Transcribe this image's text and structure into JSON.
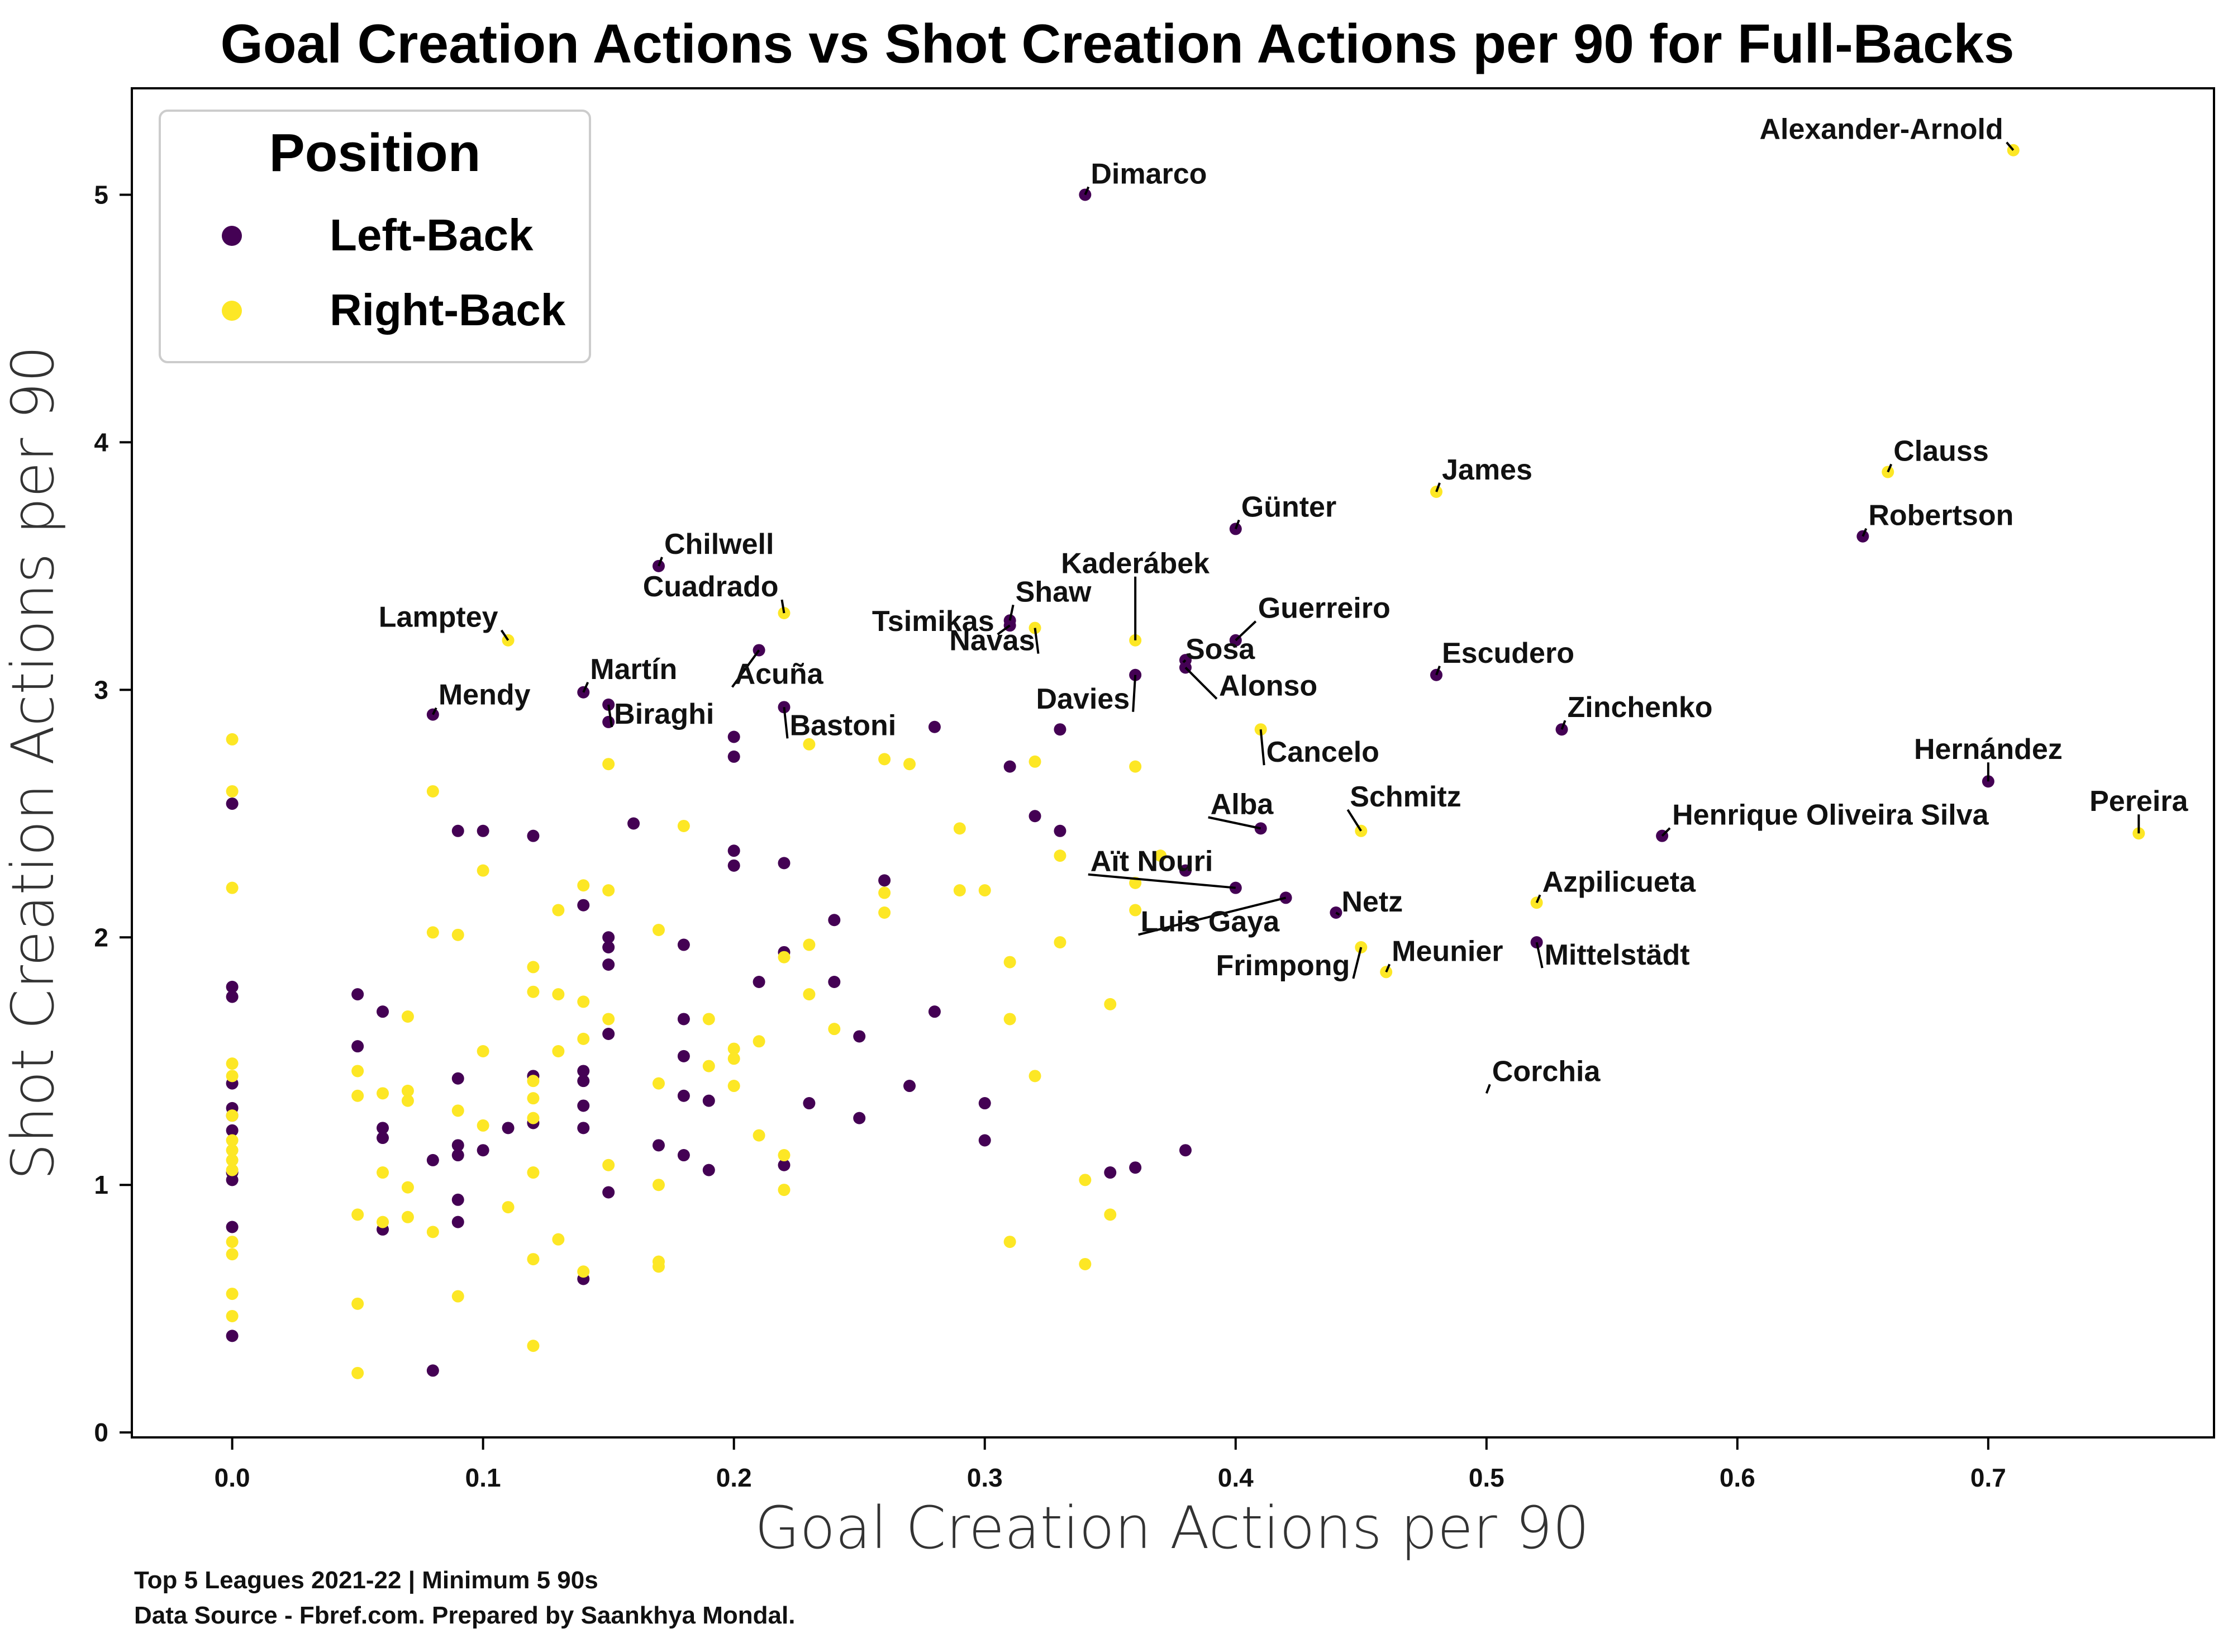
{
  "chart_data": {
    "type": "scatter",
    "title": "Goal Creation Actions vs Shot Creation Actions per 90 for Full-Backs",
    "xlabel": "Goal Creation Actions per 90",
    "ylabel": "Shot Creation Actions per 90",
    "xlim": [
      -0.04,
      0.79
    ],
    "ylim": [
      -0.02,
      5.43
    ],
    "xticks": [
      0.0,
      0.1,
      0.2,
      0.3,
      0.4,
      0.5,
      0.6,
      0.7
    ],
    "xtick_labels": [
      "0.0",
      "0.1",
      "0.2",
      "0.3",
      "0.4",
      "0.5",
      "0.6",
      "0.7"
    ],
    "yticks": [
      0,
      1,
      2,
      3,
      4,
      5
    ],
    "ytick_labels": [
      "0",
      "1",
      "2",
      "3",
      "4",
      "5"
    ],
    "grid": false,
    "legend": {
      "title": "Position",
      "placement": "top-left",
      "entries": [
        {
          "label": "Left-Back",
          "color": "#440154"
        },
        {
          "label": "Right-Back",
          "color": "#fde725"
        }
      ]
    },
    "series": [
      {
        "name": "Left-Back",
        "color": "#440154",
        "points": [
          [
            0.34,
            5.0
          ],
          [
            0.65,
            3.62
          ],
          [
            0.4,
            3.65
          ],
          [
            0.17,
            3.5
          ],
          [
            0.31,
            3.28
          ],
          [
            0.31,
            3.26
          ],
          [
            0.4,
            3.2
          ],
          [
            0.38,
            3.12
          ],
          [
            0.38,
            3.09
          ],
          [
            0.21,
            3.16
          ],
          [
            0.36,
            3.06
          ],
          [
            0.48,
            3.06
          ],
          [
            0.14,
            2.99
          ],
          [
            0.08,
            2.9
          ],
          [
            0.15,
            2.94
          ],
          [
            0.15,
            2.87
          ],
          [
            0.22,
            2.93
          ],
          [
            0.28,
            2.85
          ],
          [
            0.33,
            2.84
          ],
          [
            0.53,
            2.84
          ],
          [
            0.2,
            2.81
          ],
          [
            0.2,
            2.73
          ],
          [
            0.31,
            2.69
          ],
          [
            0.7,
            2.63
          ],
          [
            0.0,
            2.54
          ],
          [
            0.32,
            2.49
          ],
          [
            0.16,
            2.46
          ],
          [
            0.09,
            2.43
          ],
          [
            0.1,
            2.43
          ],
          [
            0.33,
            2.43
          ],
          [
            0.41,
            2.44
          ],
          [
            0.57,
            2.41
          ],
          [
            0.12,
            2.41
          ],
          [
            0.2,
            2.35
          ],
          [
            0.2,
            2.29
          ],
          [
            0.22,
            2.3
          ],
          [
            0.38,
            2.27
          ],
          [
            0.26,
            2.23
          ],
          [
            0.4,
            2.2
          ],
          [
            0.42,
            2.16
          ],
          [
            0.14,
            2.13
          ],
          [
            0.44,
            2.1
          ],
          [
            0.24,
            2.07
          ],
          [
            0.15,
            2.0
          ],
          [
            0.15,
            1.96
          ],
          [
            0.18,
            1.97
          ],
          [
            0.52,
            1.98
          ],
          [
            0.22,
            1.94
          ],
          [
            0.15,
            1.89
          ],
          [
            0.21,
            1.82
          ],
          [
            0.24,
            1.82
          ],
          [
            0.0,
            1.8
          ],
          [
            0.0,
            1.76
          ],
          [
            0.05,
            1.77
          ],
          [
            0.06,
            1.7
          ],
          [
            0.28,
            1.7
          ],
          [
            0.18,
            1.67
          ],
          [
            0.15,
            1.61
          ],
          [
            0.25,
            1.6
          ],
          [
            0.05,
            1.56
          ],
          [
            0.18,
            1.52
          ],
          [
            0.14,
            1.46
          ],
          [
            0.12,
            1.44
          ],
          [
            0.09,
            1.43
          ],
          [
            0.14,
            1.42
          ],
          [
            0.0,
            1.41
          ],
          [
            0.27,
            1.4
          ],
          [
            0.18,
            1.36
          ],
          [
            0.19,
            1.34
          ],
          [
            0.23,
            1.33
          ],
          [
            0.3,
            1.33
          ],
          [
            0.14,
            1.32
          ],
          [
            0.0,
            1.31
          ],
          [
            0.0,
            1.28
          ],
          [
            0.25,
            1.27
          ],
          [
            0.12,
            1.25
          ],
          [
            0.06,
            1.23
          ],
          [
            0.11,
            1.23
          ],
          [
            0.0,
            1.22
          ],
          [
            0.14,
            1.23
          ],
          [
            0.06,
            1.19
          ],
          [
            0.3,
            1.18
          ],
          [
            0.09,
            1.16
          ],
          [
            0.1,
            1.14
          ],
          [
            0.08,
            1.1
          ],
          [
            0.09,
            1.12
          ],
          [
            0.17,
            1.16
          ],
          [
            0.18,
            1.12
          ],
          [
            0.38,
            1.14
          ],
          [
            0.22,
            1.08
          ],
          [
            0.19,
            1.06
          ],
          [
            0.36,
            1.07
          ],
          [
            0.35,
            1.05
          ],
          [
            0.0,
            1.05
          ],
          [
            0.0,
            1.02
          ],
          [
            0.15,
            0.97
          ],
          [
            0.09,
            0.94
          ],
          [
            0.09,
            0.85
          ],
          [
            0.0,
            0.83
          ],
          [
            0.06,
            0.82
          ],
          [
            0.14,
            0.62
          ],
          [
            0.0,
            0.39
          ],
          [
            0.08,
            0.25
          ]
        ]
      },
      {
        "name": "Right-Back",
        "color": "#fde725",
        "points": [
          [
            0.71,
            5.18
          ],
          [
            0.66,
            3.88
          ],
          [
            0.48,
            3.8
          ],
          [
            0.22,
            3.31
          ],
          [
            0.11,
            3.2
          ],
          [
            0.36,
            3.2
          ],
          [
            0.32,
            3.25
          ],
          [
            0.41,
            2.84
          ],
          [
            0.0,
            2.8
          ],
          [
            0.23,
            2.78
          ],
          [
            0.26,
            2.72
          ],
          [
            0.27,
            2.7
          ],
          [
            0.15,
            2.7
          ],
          [
            0.32,
            2.71
          ],
          [
            0.36,
            2.69
          ],
          [
            0.0,
            2.59
          ],
          [
            0.08,
            2.59
          ],
          [
            0.18,
            2.45
          ],
          [
            0.29,
            2.44
          ],
          [
            0.45,
            2.43
          ],
          [
            0.76,
            2.42
          ],
          [
            0.33,
            2.33
          ],
          [
            0.37,
            2.33
          ],
          [
            0.1,
            2.27
          ],
          [
            0.36,
            2.22
          ],
          [
            0.14,
            2.21
          ],
          [
            0.0,
            2.2
          ],
          [
            0.15,
            2.19
          ],
          [
            0.26,
            2.18
          ],
          [
            0.29,
            2.19
          ],
          [
            0.3,
            2.19
          ],
          [
            0.52,
            2.14
          ],
          [
            0.36,
            2.11
          ],
          [
            0.13,
            2.11
          ],
          [
            0.26,
            2.1
          ],
          [
            0.17,
            2.03
          ],
          [
            0.08,
            2.02
          ],
          [
            0.09,
            2.01
          ],
          [
            0.33,
            1.98
          ],
          [
            0.23,
            1.97
          ],
          [
            0.45,
            1.96
          ],
          [
            0.22,
            1.92
          ],
          [
            0.31,
            1.9
          ],
          [
            0.12,
            1.88
          ],
          [
            0.46,
            1.86
          ],
          [
            0.12,
            1.78
          ],
          [
            0.13,
            1.77
          ],
          [
            0.14,
            1.74
          ],
          [
            0.23,
            1.77
          ],
          [
            0.35,
            1.73
          ],
          [
            0.07,
            1.68
          ],
          [
            0.15,
            1.67
          ],
          [
            0.19,
            1.67
          ],
          [
            0.31,
            1.67
          ],
          [
            0.24,
            1.63
          ],
          [
            0.14,
            1.59
          ],
          [
            0.21,
            1.58
          ],
          [
            0.2,
            1.55
          ],
          [
            0.1,
            1.54
          ],
          [
            0.13,
            1.54
          ],
          [
            0.2,
            1.51
          ],
          [
            0.0,
            1.49
          ],
          [
            0.19,
            1.48
          ],
          [
            0.05,
            1.46
          ],
          [
            0.0,
            1.44
          ],
          [
            0.32,
            1.44
          ],
          [
            0.12,
            1.42
          ],
          [
            0.17,
            1.41
          ],
          [
            0.2,
            1.4
          ],
          [
            0.07,
            1.38
          ],
          [
            0.06,
            1.37
          ],
          [
            0.05,
            1.36
          ],
          [
            0.12,
            1.35
          ],
          [
            0.07,
            1.34
          ],
          [
            0.09,
            1.3
          ],
          [
            0.0,
            1.28
          ],
          [
            0.12,
            1.27
          ],
          [
            0.1,
            1.24
          ],
          [
            0.0,
            1.18
          ],
          [
            0.21,
            1.2
          ],
          [
            0.0,
            1.14
          ],
          [
            0.22,
            1.12
          ],
          [
            0.0,
            1.1
          ],
          [
            0.15,
            1.08
          ],
          [
            0.06,
            1.05
          ],
          [
            0.12,
            1.05
          ],
          [
            0.0,
            1.06
          ],
          [
            0.34,
            1.02
          ],
          [
            0.17,
            1.0
          ],
          [
            0.07,
            0.99
          ],
          [
            0.22,
            0.98
          ],
          [
            0.11,
            0.91
          ],
          [
            0.05,
            0.88
          ],
          [
            0.35,
            0.88
          ],
          [
            0.07,
            0.87
          ],
          [
            0.06,
            0.85
          ],
          [
            0.08,
            0.81
          ],
          [
            0.13,
            0.78
          ],
          [
            0.31,
            0.77
          ],
          [
            0.0,
            0.77
          ],
          [
            0.0,
            0.72
          ],
          [
            0.12,
            0.7
          ],
          [
            0.17,
            0.69
          ],
          [
            0.17,
            0.67
          ],
          [
            0.34,
            0.68
          ],
          [
            0.14,
            0.65
          ],
          [
            0.0,
            0.56
          ],
          [
            0.09,
            0.55
          ],
          [
            0.05,
            0.52
          ],
          [
            0.0,
            0.47
          ],
          [
            0.12,
            0.35
          ],
          [
            0.05,
            0.24
          ]
        ]
      }
    ],
    "annotations": [
      {
        "label": "Alexander-Arnold",
        "x": 0.71,
        "y": 5.18
      },
      {
        "label": "Dimarco",
        "x": 0.34,
        "y": 5.0
      },
      {
        "label": "Clauss",
        "x": 0.66,
        "y": 3.88
      },
      {
        "label": "James",
        "x": 0.48,
        "y": 3.8
      },
      {
        "label": "Robertson",
        "x": 0.65,
        "y": 3.62
      },
      {
        "label": "Günter",
        "x": 0.4,
        "y": 3.65
      },
      {
        "label": "Chilwell",
        "x": 0.17,
        "y": 3.5
      },
      {
        "label": "Kaderábek",
        "x": 0.36,
        "y": 3.2
      },
      {
        "label": "Cuadrado",
        "x": 0.22,
        "y": 3.31
      },
      {
        "label": "Shaw",
        "x": 0.31,
        "y": 3.28
      },
      {
        "label": "Guerreiro",
        "x": 0.4,
        "y": 3.2
      },
      {
        "label": "Lamptey",
        "x": 0.11,
        "y": 3.2
      },
      {
        "label": "Tsimikas",
        "x": 0.31,
        "y": 3.26
      },
      {
        "label": "Navas",
        "x": 0.32,
        "y": 3.25
      },
      {
        "label": "Sosa",
        "x": 0.38,
        "y": 3.12
      },
      {
        "label": "Escudero",
        "x": 0.48,
        "y": 3.06
      },
      {
        "label": "Acuña",
        "x": 0.21,
        "y": 3.16
      },
      {
        "label": "Martín",
        "x": 0.14,
        "y": 2.99
      },
      {
        "label": "Alonso",
        "x": 0.38,
        "y": 3.09
      },
      {
        "label": "Davies",
        "x": 0.36,
        "y": 3.06
      },
      {
        "label": "Mendy",
        "x": 0.08,
        "y": 2.9
      },
      {
        "label": "Zinchenko",
        "x": 0.53,
        "y": 2.84
      },
      {
        "label": "Biraghi",
        "x": 0.15,
        "y": 2.94
      },
      {
        "label": "Bastoni",
        "x": 0.22,
        "y": 2.93
      },
      {
        "label": "Cancelo",
        "x": 0.41,
        "y": 2.84
      },
      {
        "label": "Hernández",
        "x": 0.7,
        "y": 2.63
      },
      {
        "label": "Pereira",
        "x": 0.76,
        "y": 2.42
      },
      {
        "label": "Schmitz",
        "x": 0.45,
        "y": 2.43
      },
      {
        "label": "Alba",
        "x": 0.41,
        "y": 2.44
      },
      {
        "label": "Henrique Oliveira Silva",
        "x": 0.57,
        "y": 2.41
      },
      {
        "label": "Aït Nouri",
        "x": 0.4,
        "y": 2.2
      },
      {
        "label": "Azpilicueta",
        "x": 0.52,
        "y": 2.14
      },
      {
        "label": "Netz",
        "x": 0.44,
        "y": 2.1
      },
      {
        "label": "Luis Gaya",
        "x": 0.42,
        "y": 2.16
      },
      {
        "label": "Meunier",
        "x": 0.46,
        "y": 1.86
      },
      {
        "label": "Mittelstädt",
        "x": 0.52,
        "y": 1.98
      },
      {
        "label": "Frimpong",
        "x": 0.45,
        "y": 1.96
      },
      {
        "label": "Corchia",
        "x": 0.5,
        "y": 1.37
      }
    ],
    "footer": [
      "Top 5 Leagues 2021-22 | Minimum 5 90s",
      "Data Source - Fbref.com. Prepared by Saankhya Mondal."
    ]
  }
}
